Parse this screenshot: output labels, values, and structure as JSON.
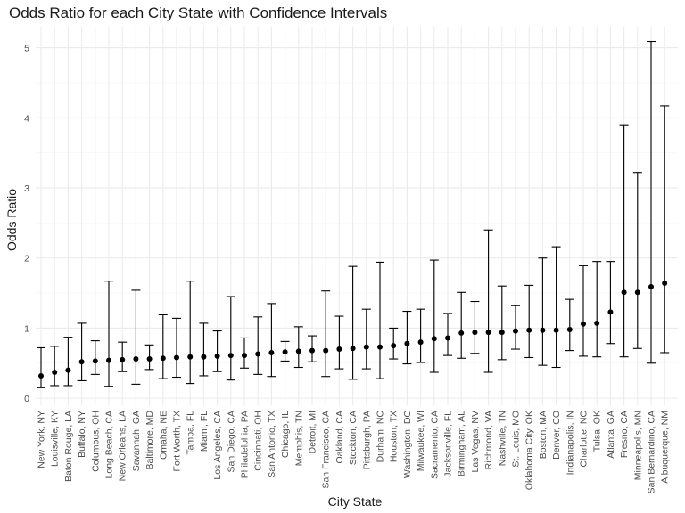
{
  "chart_data": {
    "type": "errorbar",
    "title": "Odds Ratio for each City State with Confidence Intervals",
    "xlabel": "City State",
    "ylabel": "Odds Ratio",
    "ylim": [
      -0.1,
      5.3
    ],
    "yticks": [
      0,
      1,
      2,
      3,
      4,
      5
    ],
    "grid": true,
    "legend": "none",
    "points": [
      {
        "city": "New York, NY",
        "or": 0.32,
        "lo": 0.15,
        "hi": 0.72
      },
      {
        "city": "Louisville, KY",
        "or": 0.37,
        "lo": 0.18,
        "hi": 0.74
      },
      {
        "city": "Baton Rouge, LA",
        "or": 0.4,
        "lo": 0.18,
        "hi": 0.87
      },
      {
        "city": "Buffalo, NY",
        "or": 0.52,
        "lo": 0.25,
        "hi": 1.07
      },
      {
        "city": "Columbus, OH",
        "or": 0.53,
        "lo": 0.34,
        "hi": 0.82
      },
      {
        "city": "Long Beach, CA",
        "or": 0.54,
        "lo": 0.17,
        "hi": 1.67
      },
      {
        "city": "New Orleans, LA",
        "or": 0.55,
        "lo": 0.38,
        "hi": 0.8
      },
      {
        "city": "Savannah, GA",
        "or": 0.56,
        "lo": 0.2,
        "hi": 1.54
      },
      {
        "city": "Baltimore, MD",
        "or": 0.56,
        "lo": 0.41,
        "hi": 0.76
      },
      {
        "city": "Omaha, NE",
        "or": 0.57,
        "lo": 0.28,
        "hi": 1.19
      },
      {
        "city": "Fort Worth, TX",
        "or": 0.58,
        "lo": 0.3,
        "hi": 1.14
      },
      {
        "city": "Tampa, FL",
        "or": 0.59,
        "lo": 0.21,
        "hi": 1.67
      },
      {
        "city": "Miami, FL",
        "or": 0.59,
        "lo": 0.32,
        "hi": 1.07
      },
      {
        "city": "Los Angeles, CA",
        "or": 0.6,
        "lo": 0.38,
        "hi": 0.96
      },
      {
        "city": "San Diego, CA",
        "or": 0.61,
        "lo": 0.26,
        "hi": 1.45
      },
      {
        "city": "Philadelphia, PA",
        "or": 0.61,
        "lo": 0.43,
        "hi": 0.86
      },
      {
        "city": "Cincinnati, OH",
        "or": 0.63,
        "lo": 0.34,
        "hi": 1.16
      },
      {
        "city": "San Antonio, TX",
        "or": 0.65,
        "lo": 0.31,
        "hi": 1.35
      },
      {
        "city": "Chicago, IL",
        "or": 0.66,
        "lo": 0.53,
        "hi": 0.81
      },
      {
        "city": "Memphis, TN",
        "or": 0.67,
        "lo": 0.44,
        "hi": 1.02
      },
      {
        "city": "Detroit, MI",
        "or": 0.68,
        "lo": 0.52,
        "hi": 0.89
      },
      {
        "city": "San Francisco, CA",
        "or": 0.68,
        "lo": 0.31,
        "hi": 1.53
      },
      {
        "city": "Oakland, CA",
        "or": 0.7,
        "lo": 0.42,
        "hi": 1.17
      },
      {
        "city": "Stockton, CA",
        "or": 0.71,
        "lo": 0.27,
        "hi": 1.88
      },
      {
        "city": "Pittsburgh, PA",
        "or": 0.73,
        "lo": 0.42,
        "hi": 1.27
      },
      {
        "city": "Durham, NC",
        "or": 0.73,
        "lo": 0.28,
        "hi": 1.94
      },
      {
        "city": "Houston, TX",
        "or": 0.75,
        "lo": 0.56,
        "hi": 1.0
      },
      {
        "city": "Washington, DC",
        "or": 0.78,
        "lo": 0.49,
        "hi": 1.24
      },
      {
        "city": "Milwaukee, WI",
        "or": 0.8,
        "lo": 0.51,
        "hi": 1.27
      },
      {
        "city": "Sacramento, CA",
        "or": 0.85,
        "lo": 0.37,
        "hi": 1.97
      },
      {
        "city": "Jacksonville, FL",
        "or": 0.86,
        "lo": 0.61,
        "hi": 1.21
      },
      {
        "city": "Birmingham, AL",
        "or": 0.93,
        "lo": 0.57,
        "hi": 1.51
      },
      {
        "city": "Las Vegas, NV",
        "or": 0.94,
        "lo": 0.64,
        "hi": 1.38
      },
      {
        "city": "Richmond, VA",
        "or": 0.94,
        "lo": 0.37,
        "hi": 2.4
      },
      {
        "city": "Nashville, TN",
        "or": 0.94,
        "lo": 0.55,
        "hi": 1.6
      },
      {
        "city": "St. Louis, MO",
        "or": 0.96,
        "lo": 0.7,
        "hi": 1.32
      },
      {
        "city": "Oklahoma City, OK",
        "or": 0.97,
        "lo": 0.58,
        "hi": 1.61
      },
      {
        "city": "Boston, MA",
        "or": 0.97,
        "lo": 0.47,
        "hi": 2.0
      },
      {
        "city": "Denver, CO",
        "or": 0.97,
        "lo": 0.44,
        "hi": 2.16
      },
      {
        "city": "Indianapolis, IN",
        "or": 0.98,
        "lo": 0.68,
        "hi": 1.41
      },
      {
        "city": "Charlotte, NC",
        "or": 1.06,
        "lo": 0.6,
        "hi": 1.89
      },
      {
        "city": "Tulsa, OK",
        "or": 1.07,
        "lo": 0.59,
        "hi": 1.95
      },
      {
        "city": "Atlanta, GA",
        "or": 1.23,
        "lo": 0.78,
        "hi": 1.95
      },
      {
        "city": "Fresno, CA",
        "or": 1.51,
        "lo": 0.59,
        "hi": 3.9
      },
      {
        "city": "Minneapolis, MN",
        "or": 1.51,
        "lo": 0.71,
        "hi": 3.22
      },
      {
        "city": "San Bernardino, CA",
        "or": 1.59,
        "lo": 0.5,
        "hi": 5.09
      },
      {
        "city": "Albuquerque, NM",
        "or": 1.64,
        "lo": 0.65,
        "hi": 4.17
      }
    ]
  }
}
